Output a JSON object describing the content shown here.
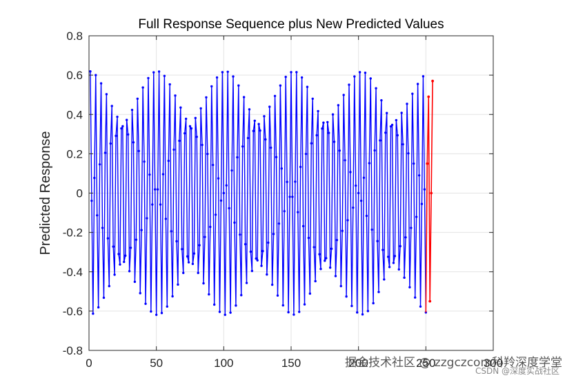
{
  "chart_data": {
    "type": "line",
    "title": "Full Response Sequence plus New Predicted Values",
    "xlabel": "",
    "ylabel": "Predicted Response",
    "xlim": [
      0,
      300
    ],
    "ylim": [
      -0.8,
      0.8
    ],
    "xticks": [
      0,
      50,
      100,
      150,
      200,
      250,
      300
    ],
    "yticks": [
      -0.8,
      -0.6,
      -0.4,
      -0.2,
      0,
      0.2,
      0.4,
      0.6,
      0.8
    ],
    "xtick_labels": [
      "0",
      "50",
      "100",
      "150",
      "200",
      "250",
      "300"
    ],
    "ytick_labels": [
      "-0.8",
      "-0.6",
      "-0.4",
      "-0.2",
      "0",
      "0.2",
      "0.4",
      "0.6",
      "0.8"
    ],
    "grid": true,
    "series": [
      {
        "color": "#0000ff",
        "marker": "dot",
        "x_start": 1,
        "x_end": 250,
        "model": "y(t) = 0.6 * sin(2*pi*0.255*t) * envelope(t)",
        "amplitude_range": [
          0.48,
          0.62
        ]
      },
      {
        "color": "#ff0000",
        "marker": "dot",
        "x": [
          251,
          252,
          253,
          254,
          255
        ],
        "y": [
          0.15,
          0.49,
          -0.55,
          0.0,
          0.57
        ]
      }
    ]
  },
  "watermark": {
    "line1": "掘金技术社区 @ zzgczcom科羚深度学堂",
    "line2": "CSDN @深度实战社区"
  }
}
